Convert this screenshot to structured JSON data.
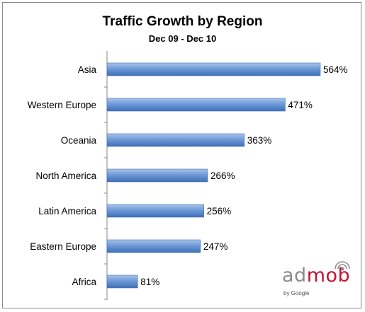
{
  "chart_data": {
    "type": "bar",
    "orientation": "horizontal",
    "title": "Traffic Growth by Region",
    "subtitle": "Dec 09 - Dec 10",
    "categories": [
      "Asia",
      "Western Europe",
      "Oceania",
      "North America",
      "Latin America",
      "Eastern Europe",
      "Africa"
    ],
    "values": [
      564,
      471,
      363,
      266,
      256,
      247,
      81
    ],
    "value_labels": [
      "564%",
      "471%",
      "363%",
      "266%",
      "256%",
      "247%",
      "81%"
    ],
    "xlim": [
      0,
      600
    ],
    "grid": false,
    "bar_color": "#4f81bd"
  },
  "logo": {
    "word_part1": "ad",
    "word_part2": "mob",
    "sub": "by Google"
  }
}
